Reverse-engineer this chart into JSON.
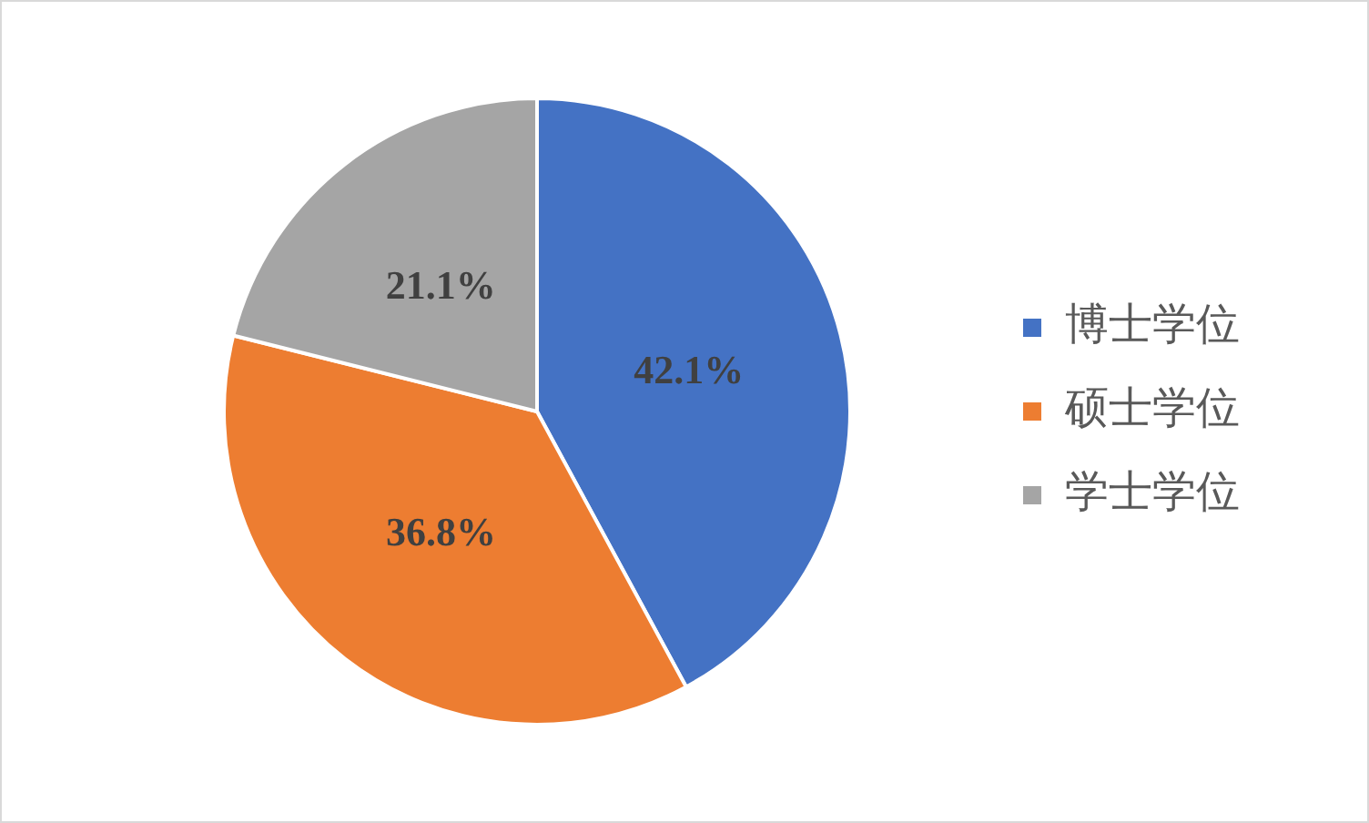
{
  "chart_data": {
    "type": "pie",
    "categories": [
      "博士学位",
      "硕士学位",
      "学士学位"
    ],
    "values": [
      42.1,
      36.8,
      21.1
    ],
    "colors": [
      "#4472c4",
      "#ed7d31",
      "#a5a5a5"
    ],
    "value_labels": [
      "42.1%",
      "36.8%",
      "21.1%"
    ],
    "legend": "right"
  }
}
